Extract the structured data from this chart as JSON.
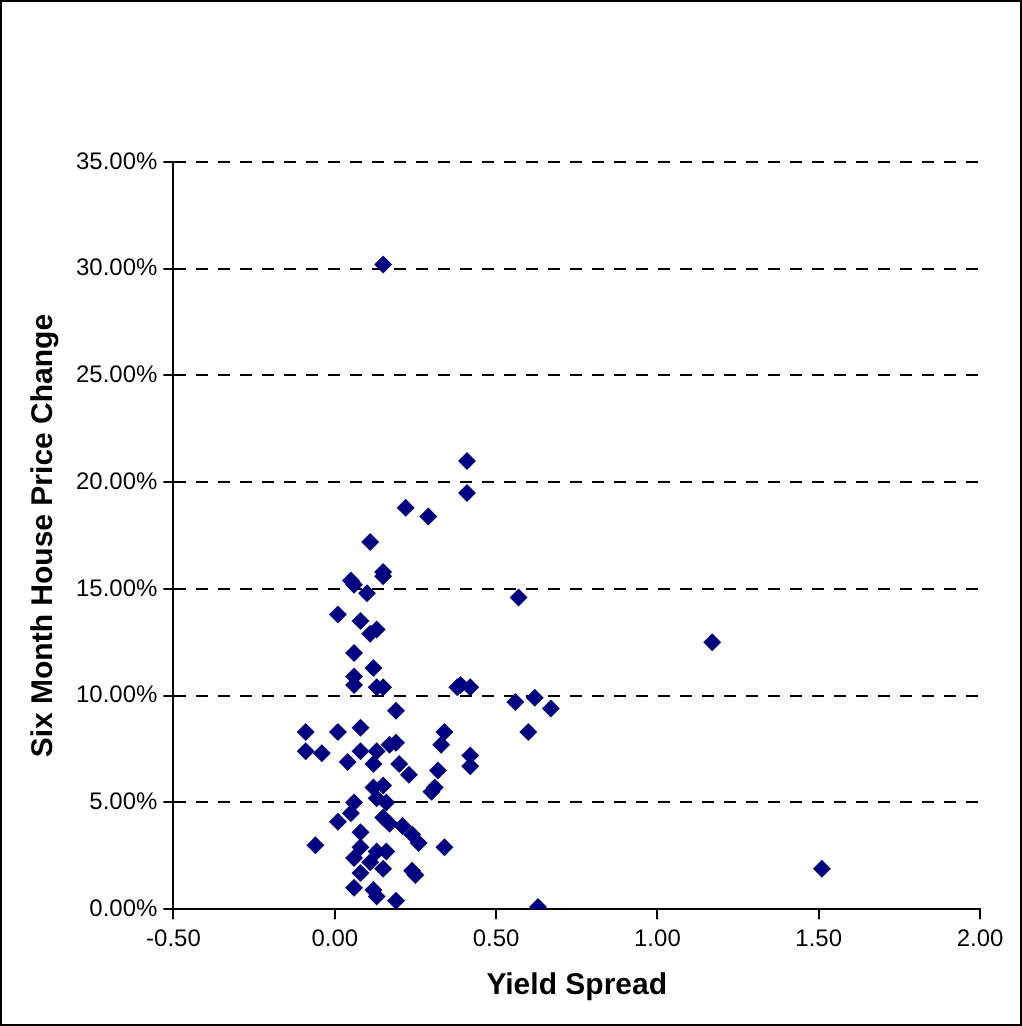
{
  "chart_data": {
    "type": "scatter",
    "xlabel": "Yield Spread",
    "ylabel": "Six Month House Price Change",
    "xlim": [
      -0.5,
      2
    ],
    "xticks": [
      {
        "value": -0.5,
        "label": "-0.50"
      },
      {
        "value": 0,
        "label": "0.00"
      },
      {
        "value": 0.5,
        "label": "0.50"
      },
      {
        "value": 1,
        "label": "1.00"
      },
      {
        "value": 1.5,
        "label": "1.50"
      },
      {
        "value": 2,
        "label": "2.00"
      }
    ],
    "ylim": [
      0,
      35
    ],
    "yticks": [
      {
        "value": 0,
        "label": "0.00%"
      },
      {
        "value": 5,
        "label": "5.00%"
      },
      {
        "value": 10,
        "label": "10.00%"
      },
      {
        "value": 15,
        "label": "15.00%"
      },
      {
        "value": 20,
        "label": "20.00%"
      },
      {
        "value": 25,
        "label": "25.00%"
      },
      {
        "value": 30,
        "label": "30.00%"
      },
      {
        "value": 35,
        "label": "35.00%"
      }
    ],
    "grid": "y",
    "legend": false,
    "marker": "diamond",
    "series": [
      {
        "color": "#000080",
        "x": [
          0.15,
          0.41,
          0.41,
          0.22,
          0.29,
          0.11,
          0.15,
          0.05,
          0.06,
          0.1,
          0.15,
          0.57,
          0.01,
          0.08,
          0.13,
          0.11,
          0.06,
          0.12,
          0.06,
          0.06,
          0.13,
          0.15,
          0.38,
          0.39,
          0.42,
          0.19,
          0.56,
          0.62,
          0.67,
          0.6,
          -0.09,
          -0.09,
          0.01,
          0.08,
          -0.04,
          0.08,
          0.04,
          0.34,
          0.33,
          0.17,
          0.19,
          0.13,
          0.2,
          0.12,
          0.23,
          0.42,
          0.42,
          0.32,
          0.31,
          0.3,
          0.12,
          0.15,
          0.13,
          0.16,
          0.06,
          0.15,
          0.05,
          0.01,
          0.17,
          0.08,
          0.21,
          0.24,
          0.26,
          0.34,
          -0.06,
          0.08,
          0.13,
          0.16,
          0.06,
          0.11,
          0.08,
          0.15,
          0.24,
          0.25,
          0.06,
          0.12,
          0.13,
          0.19,
          0.63,
          1.17,
          1.51
        ],
        "values": [
          30.2,
          21.0,
          19.5,
          18.8,
          18.4,
          17.2,
          15.8,
          15.4,
          15.2,
          14.8,
          15.6,
          14.6,
          13.8,
          13.5,
          13.1,
          12.9,
          12.0,
          11.3,
          10.9,
          10.5,
          10.4,
          10.4,
          10.4,
          10.5,
          10.4,
          9.3,
          9.7,
          9.9,
          9.4,
          8.3,
          8.3,
          7.4,
          8.3,
          8.5,
          7.3,
          7.4,
          6.9,
          8.3,
          7.7,
          7.7,
          7.8,
          7.4,
          6.8,
          6.8,
          6.3,
          7.2,
          6.7,
          6.5,
          5.7,
          5.5,
          5.7,
          5.8,
          5.2,
          5.0,
          5.0,
          4.3,
          4.5,
          4.1,
          4.0,
          3.6,
          3.9,
          3.5,
          3.1,
          2.9,
          3.0,
          2.9,
          2.7,
          2.7,
          2.4,
          2.2,
          1.7,
          1.9,
          1.8,
          1.6,
          1.0,
          0.9,
          0.6,
          0.4,
          0.1,
          12.5,
          1.9
        ]
      }
    ]
  }
}
